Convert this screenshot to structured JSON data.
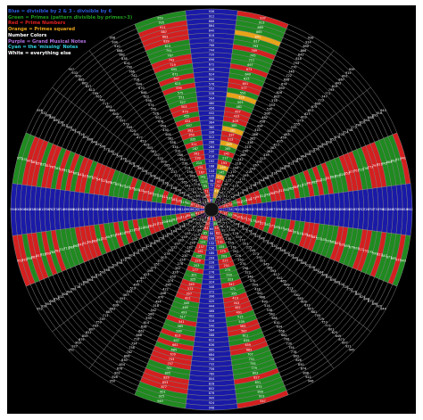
{
  "legend": {
    "lines": [
      {
        "text": "Blue = divisible by 2 & 3 - divisible by 6",
        "color": "#2b5bd8"
      },
      {
        "text": "Green = Primes (pattern divisible by primes>3)",
        "color": "#1f9a1f"
      },
      {
        "text": "Red = Prime Numbers",
        "color": "#e02020"
      },
      {
        "text": "Orange = Primes squared",
        "color": "#e8a418"
      },
      {
        "text": "Number Colors",
        "color": "#ffffff"
      },
      {
        "text": "Purple = Grand Musical Notes",
        "color": "#b070e0"
      },
      {
        "text": "Cyan = the 'missing' Notes",
        "color": "#30d0e0"
      },
      {
        "text": "White = everything else",
        "color": "#ffffff"
      }
    ]
  },
  "colors": {
    "background": "#000000",
    "divisible_by_6": "#1a1aa8",
    "prime_pattern": "#1f8a1f",
    "prime": "#d41f1f",
    "prime_squared": "#e8a418",
    "grid_line": "#9a9a9a",
    "number_white": "#ffffff",
    "number_purple": "#a060d0",
    "number_cyan": "#30d0e0"
  },
  "wheel": {
    "spokes": 24,
    "rings": 40,
    "column_numbers": [
      "156",
      "144",
      "132",
      "120",
      "108",
      "96",
      "84",
      "72",
      "60",
      "48",
      "36",
      "24",
      "12",
      "6",
      "18",
      "30",
      "42",
      "54",
      "66",
      "78",
      "90",
      "102",
      "114",
      "126",
      "138",
      "150",
      "162",
      "174",
      "186",
      "198",
      "210",
      "222",
      "234",
      "246",
      "258",
      "270",
      "282",
      "294",
      "306",
      "318",
      "330",
      "342",
      "354",
      "366",
      "378",
      "390",
      "402",
      "414"
    ]
  }
}
